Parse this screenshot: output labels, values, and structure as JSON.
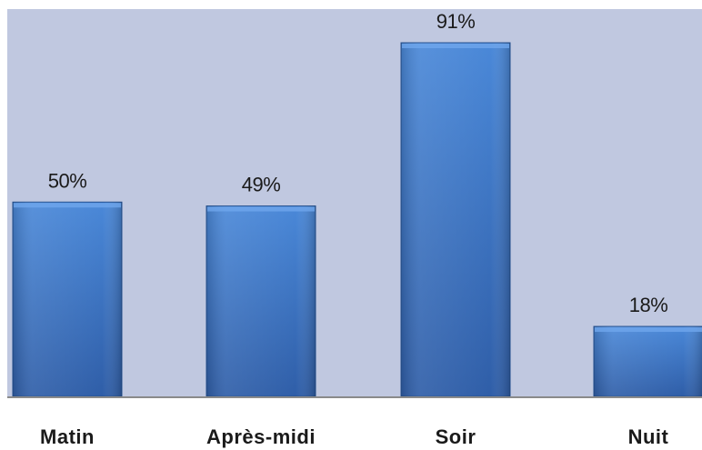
{
  "chart_data": {
    "type": "bar",
    "categories": [
      "Matin",
      "Après-midi",
      "Soir",
      "Nuit"
    ],
    "values": [
      50,
      49,
      91,
      18
    ],
    "value_labels": [
      "50%",
      "49%",
      "91%",
      "18%"
    ],
    "title": "",
    "xlabel": "",
    "ylabel": "",
    "ylim": [
      0,
      100
    ],
    "grid": false,
    "legend": "none"
  },
  "colors": {
    "plot_background": "#c0c8e0",
    "bar_top": "#4a88d8",
    "bar_bottom": "#2f5ea8",
    "bar_edge": "#24508f",
    "axis_line": "#8a8a8a"
  }
}
